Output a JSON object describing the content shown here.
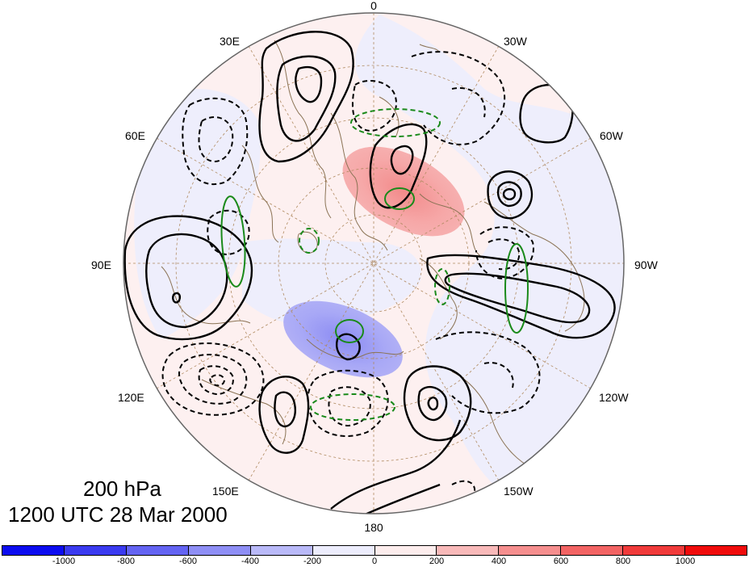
{
  "map": {
    "title_level": "200 hPa",
    "title_time": "1200 UTC 28 Mar 2000",
    "longitude_labels": [
      "0",
      "30W",
      "60W",
      "90W",
      "120W",
      "150W",
      "180",
      "150E",
      "120E",
      "90E",
      "60E",
      "30E"
    ],
    "projection": "north polar stereographic",
    "positive_contour_color": "#000000",
    "negative_contour_style": "dashed",
    "green_contour_color": "#1a8a1a",
    "anomaly_positive_color": "#f08c8c",
    "anomaly_negative_color": "#8c8cf0",
    "background_light_red": "#fdeeee",
    "background_light_blue": "#eeeefc",
    "coastline_color": "#8b7355"
  },
  "colorbar": {
    "labels": [
      "-1000",
      "-800",
      "-600",
      "-400",
      "-200",
      "0",
      "200",
      "400",
      "600",
      "800",
      "1000"
    ],
    "colors": [
      "#0b0bf0",
      "#3a3af0",
      "#6363f2",
      "#8e8ef5",
      "#b9b9f8",
      "#ececfc",
      "#fcecec",
      "#f8b9b9",
      "#f58e8e",
      "#f26363",
      "#f03a3a",
      "#f00b0b"
    ]
  }
}
